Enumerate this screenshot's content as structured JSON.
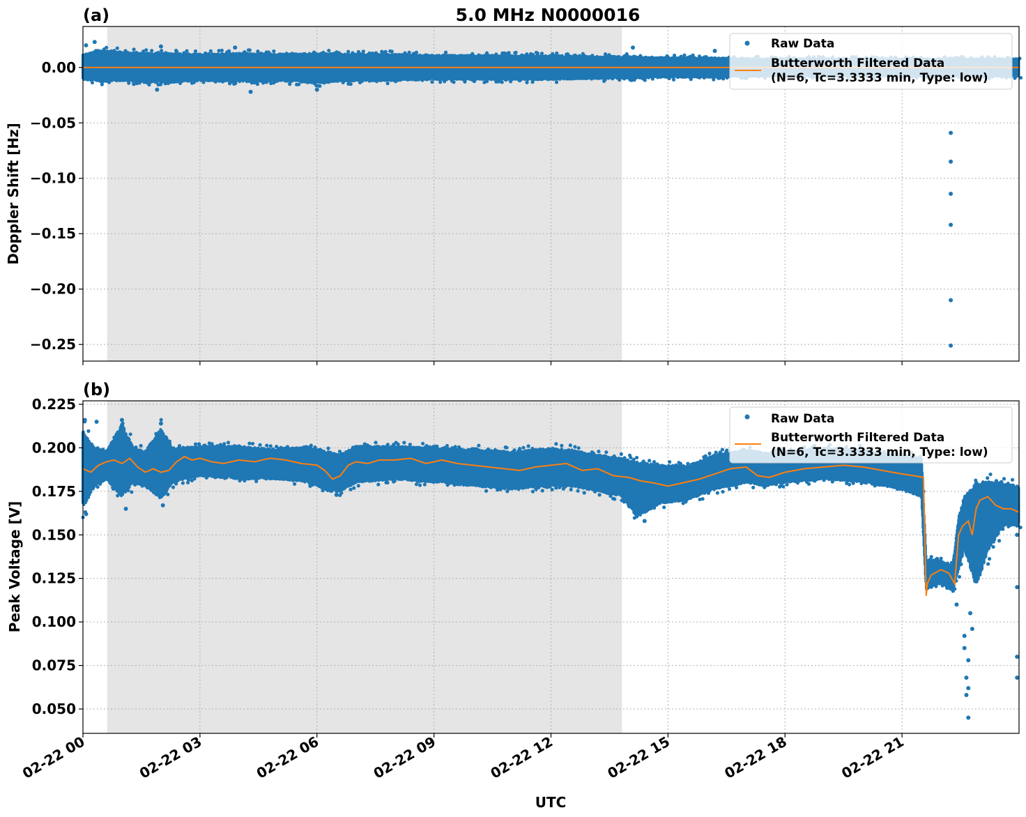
{
  "chart_data": [
    {
      "type": "scatter",
      "panel_label": "(a)",
      "title": "5.0 MHz N0000016",
      "xlabel": "",
      "ylabel": "Doppler Shift [Hz]",
      "ylim": [
        -0.265,
        0.037
      ],
      "yticks": [
        0.0,
        -0.05,
        -0.1,
        -0.15,
        -0.2,
        -0.25
      ],
      "ytick_labels": [
        "0.00",
        "−0.05",
        "−0.10",
        "−0.15",
        "−0.20",
        "−0.25"
      ],
      "grid": true,
      "legend_position": "top-right",
      "shaded_span_hours": [
        0.62,
        13.82
      ],
      "series": [
        {
          "name": "Raw Data",
          "style": "points",
          "color": "#1f77b4",
          "band": {
            "hours": [
              0,
              0.5,
              1,
              1.5,
              2,
              3,
              4,
              5,
              6,
              7,
              8,
              9,
              10,
              11,
              12,
              13,
              14,
              15,
              16,
              17,
              18,
              19,
              20,
              21,
              22,
              23,
              24
            ],
            "low": [
              -0.011,
              -0.013,
              -0.012,
              -0.013,
              -0.014,
              -0.012,
              -0.013,
              -0.012,
              -0.014,
              -0.012,
              -0.012,
              -0.011,
              -0.011,
              -0.011,
              -0.011,
              -0.01,
              -0.01,
              -0.009,
              -0.009,
              -0.008,
              -0.008,
              -0.008,
              -0.008,
              -0.008,
              -0.008,
              -0.008,
              -0.008
            ],
            "high": [
              0.012,
              0.016,
              0.014,
              0.013,
              0.013,
              0.012,
              0.013,
              0.012,
              0.013,
              0.012,
              0.012,
              0.011,
              0.011,
              0.011,
              0.011,
              0.01,
              0.01,
              0.009,
              0.009,
              0.008,
              0.008,
              0.008,
              0.008,
              0.008,
              0.008,
              0.008,
              0.008
            ]
          },
          "outliers": [
            [
              0.08,
              0.02
            ],
            [
              0.3,
              0.023
            ],
            [
              2.0,
              0.019
            ],
            [
              1.9,
              -0.02
            ],
            [
              4.3,
              -0.022
            ],
            [
              3.9,
              0.018
            ],
            [
              6.0,
              -0.02
            ],
            [
              14.1,
              0.018
            ],
            [
              16.2,
              0.015
            ],
            [
              22.25,
              -0.059
            ],
            [
              22.25,
              -0.085
            ],
            [
              22.25,
              -0.114
            ],
            [
              22.25,
              -0.142
            ],
            [
              22.25,
              -0.21
            ],
            [
              22.25,
              -0.251
            ]
          ]
        },
        {
          "name": "Butterworth Filtered Data\n(N=6, Tc=3.3333 min, Type: low)",
          "style": "line",
          "color": "#ff7f0e",
          "hours": [
            0,
            24
          ],
          "values": [
            0.0,
            0.0
          ]
        }
      ]
    },
    {
      "type": "scatter",
      "panel_label": "(b)",
      "title": "",
      "xlabel": "UTC",
      "ylabel": "Peak Voltage [V]",
      "ylim": [
        0.036,
        0.227
      ],
      "yticks": [
        0.225,
        0.2,
        0.175,
        0.15,
        0.125,
        0.1,
        0.075,
        0.05
      ],
      "ytick_labels": [
        "0.225",
        "0.200",
        "0.175",
        "0.150",
        "0.125",
        "0.100",
        "0.075",
        "0.050"
      ],
      "grid": true,
      "legend_position": "top-right",
      "shaded_span_hours": [
        0.62,
        13.82
      ],
      "series": [
        {
          "name": "Raw Data",
          "style": "points",
          "color": "#1f77b4",
          "band": {
            "hours": [
              0,
              0.3,
              0.6,
              1.0,
              1.3,
              1.6,
              2.0,
              2.3,
              3.0,
              4.0,
              5.0,
              5.8,
              6.3,
              6.6,
              7.0,
              8.0,
              9.0,
              10.0,
              11.0,
              12.0,
              12.5,
              13.0,
              13.8,
              14.2,
              14.8,
              15.5,
              16.2,
              17.0,
              17.5,
              18.0,
              19.0,
              20.0,
              20.8,
              21.5,
              21.62,
              21.7,
              22.0,
              22.3,
              22.45,
              22.6,
              22.9,
              23.2,
              23.6,
              24.0
            ],
            "low": [
              0.165,
              0.178,
              0.182,
              0.172,
              0.18,
              0.178,
              0.17,
              0.18,
              0.184,
              0.182,
              0.182,
              0.18,
              0.175,
              0.175,
              0.18,
              0.182,
              0.18,
              0.178,
              0.176,
              0.178,
              0.178,
              0.176,
              0.172,
              0.16,
              0.168,
              0.17,
              0.176,
              0.18,
              0.178,
              0.18,
              0.182,
              0.18,
              0.177,
              0.172,
              0.118,
              0.12,
              0.122,
              0.118,
              0.13,
              0.142,
              0.12,
              0.14,
              0.155,
              0.155
            ],
            "high": [
              0.21,
              0.2,
              0.198,
              0.214,
              0.2,
              0.198,
              0.212,
              0.2,
              0.201,
              0.201,
              0.199,
              0.201,
              0.198,
              0.196,
              0.201,
              0.201,
              0.2,
              0.199,
              0.198,
              0.2,
              0.199,
              0.197,
              0.194,
              0.192,
              0.19,
              0.19,
              0.196,
              0.199,
              0.197,
              0.198,
              0.2,
              0.199,
              0.196,
              0.194,
              0.135,
              0.136,
              0.135,
              0.132,
              0.16,
              0.172,
              0.18,
              0.181,
              0.18,
              0.178
            ]
          },
          "outliers": [
            [
              0.05,
              0.216
            ],
            [
              0.08,
              0.162
            ],
            [
              0.35,
              0.215
            ],
            [
              1.0,
              0.216
            ],
            [
              1.1,
              0.165
            ],
            [
              2.0,
              0.214
            ],
            [
              2.05,
              0.167
            ],
            [
              6.5,
              0.173
            ],
            [
              14.4,
              0.158
            ],
            [
              22.4,
              0.11
            ],
            [
              22.6,
              0.085
            ],
            [
              22.6,
              0.092
            ],
            [
              22.65,
              0.068
            ],
            [
              22.65,
              0.058
            ],
            [
              22.7,
              0.045
            ],
            [
              22.7,
              0.062
            ],
            [
              22.7,
              0.078
            ],
            [
              22.75,
              0.105
            ],
            [
              22.8,
              0.096
            ],
            [
              23.95,
              0.068
            ],
            [
              23.95,
              0.08
            ],
            [
              23.95,
              0.12
            ],
            [
              23.95,
              0.15
            ]
          ]
        },
        {
          "name": "Butterworth Filtered Data\n(N=6, Tc=3.3333 min, Type: low)",
          "style": "line",
          "color": "#ff7f0e",
          "hours": [
            0,
            0.2,
            0.4,
            0.6,
            0.8,
            1.0,
            1.2,
            1.4,
            1.6,
            1.8,
            2.0,
            2.2,
            2.4,
            2.6,
            2.8,
            3.0,
            3.3,
            3.6,
            4.0,
            4.4,
            4.8,
            5.2,
            5.6,
            6.0,
            6.2,
            6.4,
            6.6,
            6.8,
            7.0,
            7.3,
            7.6,
            8.0,
            8.4,
            8.8,
            9.2,
            9.6,
            10.0,
            10.4,
            10.8,
            11.2,
            11.6,
            12.0,
            12.4,
            12.8,
            13.2,
            13.6,
            14.0,
            14.3,
            14.6,
            15.0,
            15.4,
            15.8,
            16.2,
            16.6,
            17.0,
            17.3,
            17.6,
            18.0,
            18.5,
            19.0,
            19.5,
            20.0,
            20.5,
            21.0,
            21.3,
            21.55,
            21.62,
            21.65,
            21.75,
            22.0,
            22.2,
            22.35,
            22.45,
            22.55,
            22.7,
            22.8,
            22.9,
            23.0,
            23.2,
            23.4,
            23.6,
            23.8,
            24.0
          ],
          "values": [
            0.188,
            0.186,
            0.19,
            0.192,
            0.193,
            0.191,
            0.194,
            0.189,
            0.186,
            0.188,
            0.186,
            0.187,
            0.192,
            0.195,
            0.193,
            0.194,
            0.192,
            0.191,
            0.193,
            0.192,
            0.194,
            0.193,
            0.191,
            0.19,
            0.187,
            0.182,
            0.184,
            0.19,
            0.192,
            0.191,
            0.193,
            0.193,
            0.194,
            0.191,
            0.193,
            0.191,
            0.19,
            0.189,
            0.188,
            0.187,
            0.189,
            0.19,
            0.191,
            0.187,
            0.188,
            0.184,
            0.183,
            0.181,
            0.18,
            0.178,
            0.18,
            0.182,
            0.185,
            0.188,
            0.189,
            0.184,
            0.183,
            0.186,
            0.188,
            0.189,
            0.19,
            0.189,
            0.187,
            0.185,
            0.184,
            0.183,
            0.115,
            0.122,
            0.127,
            0.13,
            0.128,
            0.122,
            0.15,
            0.155,
            0.158,
            0.15,
            0.165,
            0.17,
            0.172,
            0.167,
            0.165,
            0.165,
            0.163
          ]
        }
      ]
    }
  ],
  "x_axis": {
    "label": "UTC",
    "range_hours": [
      0,
      24
    ],
    "ticks_hours": [
      0,
      3,
      6,
      9,
      12,
      15,
      18,
      21
    ],
    "tick_labels": [
      "02-22 00",
      "02-22 03",
      "02-22 06",
      "02-22 09",
      "02-22 12",
      "02-22 15",
      "02-22 18",
      "02-22 21"
    ]
  },
  "legend": {
    "raw_label": "Raw Data",
    "filtered_label_line1": "Butterworth Filtered Data",
    "filtered_label_line2": "(N=6, Tc=3.3333 min, Type: low)"
  }
}
